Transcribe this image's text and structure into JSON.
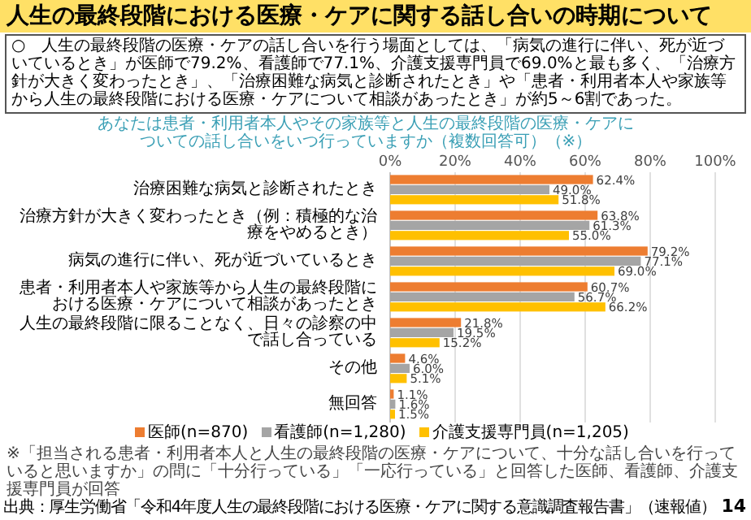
{
  "chart_data": {
    "type": "bar",
    "orientation": "horizontal",
    "title": "人生の最終段階における医療・ケアに関する話し合いの時期について",
    "subtitle": "あなたは患者・利用者本人やその家族等と人生の最終段階の医療・ケアについての話し合いをいつ行っていますか（複数回答可）（※）",
    "categories": [
      "治療困難な病気と診断されたとき",
      "治療方針が大きく変わったとき（例：積極的な治療をやめるとき）",
      "病気の進行に伴い、死が近づいているとき",
      "患者・利用者本人や家族等から人生の最終段階における医療・ケアについて相談があったとき",
      "人生の最終段階に限ることなく、日々の診察の中で話し合っている",
      "その他",
      "無回答"
    ],
    "series": [
      {
        "name": "医師(n=870)",
        "color": "#ed7d31",
        "values": [
          62.4,
          63.8,
          79.2,
          60.7,
          21.8,
          4.6,
          1.1
        ],
        "value_labels": [
          "62.4%",
          "63.8%",
          "79.2%",
          "60.7%",
          "21.8%",
          "4.6%",
          "1.1%"
        ]
      },
      {
        "name": "看護師(n=1,280)",
        "color": "#a5a5a5",
        "values": [
          49.0,
          61.3,
          77.1,
          56.7,
          19.5,
          6.0,
          1.6
        ],
        "value_labels": [
          "49.0%",
          "61.3%",
          "77.1%",
          "56.7%",
          "19.5%",
          "6.0%",
          "1.6%"
        ]
      },
      {
        "name": "介護支援専門員(n=1,205)",
        "color": "#ffc000",
        "values": [
          51.8,
          55.0,
          69.0,
          66.2,
          15.2,
          5.1,
          1.5
        ],
        "value_labels": [
          "51.8%",
          "55.0%",
          "69.0%",
          "66.2%",
          "15.2%",
          "5.1%",
          "1.5%"
        ]
      }
    ],
    "xlim": [
      0,
      100
    ],
    "xticks": [
      {
        "value": 0,
        "label": "0%"
      },
      {
        "value": 20,
        "label": "20%"
      },
      {
        "value": 40,
        "label": "40%"
      },
      {
        "value": 60,
        "label": "60%"
      },
      {
        "value": 80,
        "label": "80%"
      },
      {
        "value": 100,
        "label": "100%"
      }
    ],
    "grid": "x",
    "legend": "bottom",
    "annotations": [
      "○　人生の最終段階の医療・ケアの話し合いを行う場面としては、「病気の進行に伴い、死が近づいているとき」が医師で79.2%、看護師で77.1%、介護支援専門員で69.0%と最も多く、「治療方針が大きく変わったとき」、「治療困難な病気と診断されたとき」や「患者・利用者本人や家族等から人生の最終段階における医療・ケアについて相談があったとき」が約5～6割であった。",
      "※「担当される患者・利用者本人と人生の最終段階の医療・ケアについて、十分な話し合いを行っていると思いますか」の問に「十分行っている」「一応行っている」と回答した医師、看護師、介護支援専門員が回答",
      "出典：厚生労働省「令和4年度人生の最終段階における医療・ケアに関する意識調査報告書」（速報値）",
      "14"
    ]
  }
}
